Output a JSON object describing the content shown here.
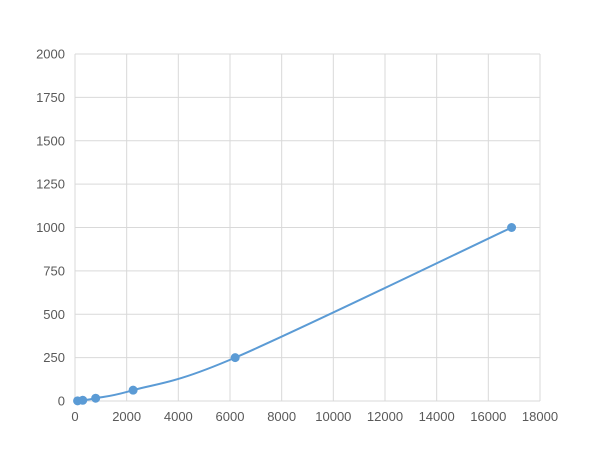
{
  "chart_data": {
    "type": "scatter",
    "title": "",
    "xlabel": "",
    "ylabel": "",
    "xlim": [
      0,
      18000
    ],
    "ylim": [
      0,
      2000
    ],
    "xticks": [
      0,
      2000,
      4000,
      6000,
      8000,
      10000,
      12000,
      14000,
      16000,
      18000
    ],
    "yticks": [
      0,
      250,
      500,
      750,
      1000,
      1250,
      1500,
      1750,
      2000
    ],
    "grid": true,
    "legend": "none",
    "smooth_line": true,
    "series": [
      {
        "x": [
          100,
          300,
          800,
          2250,
          6200,
          16900
        ],
        "y": [
          1,
          4,
          16,
          62.5,
          250,
          1000
        ],
        "color": "#5b9bd5"
      }
    ]
  }
}
